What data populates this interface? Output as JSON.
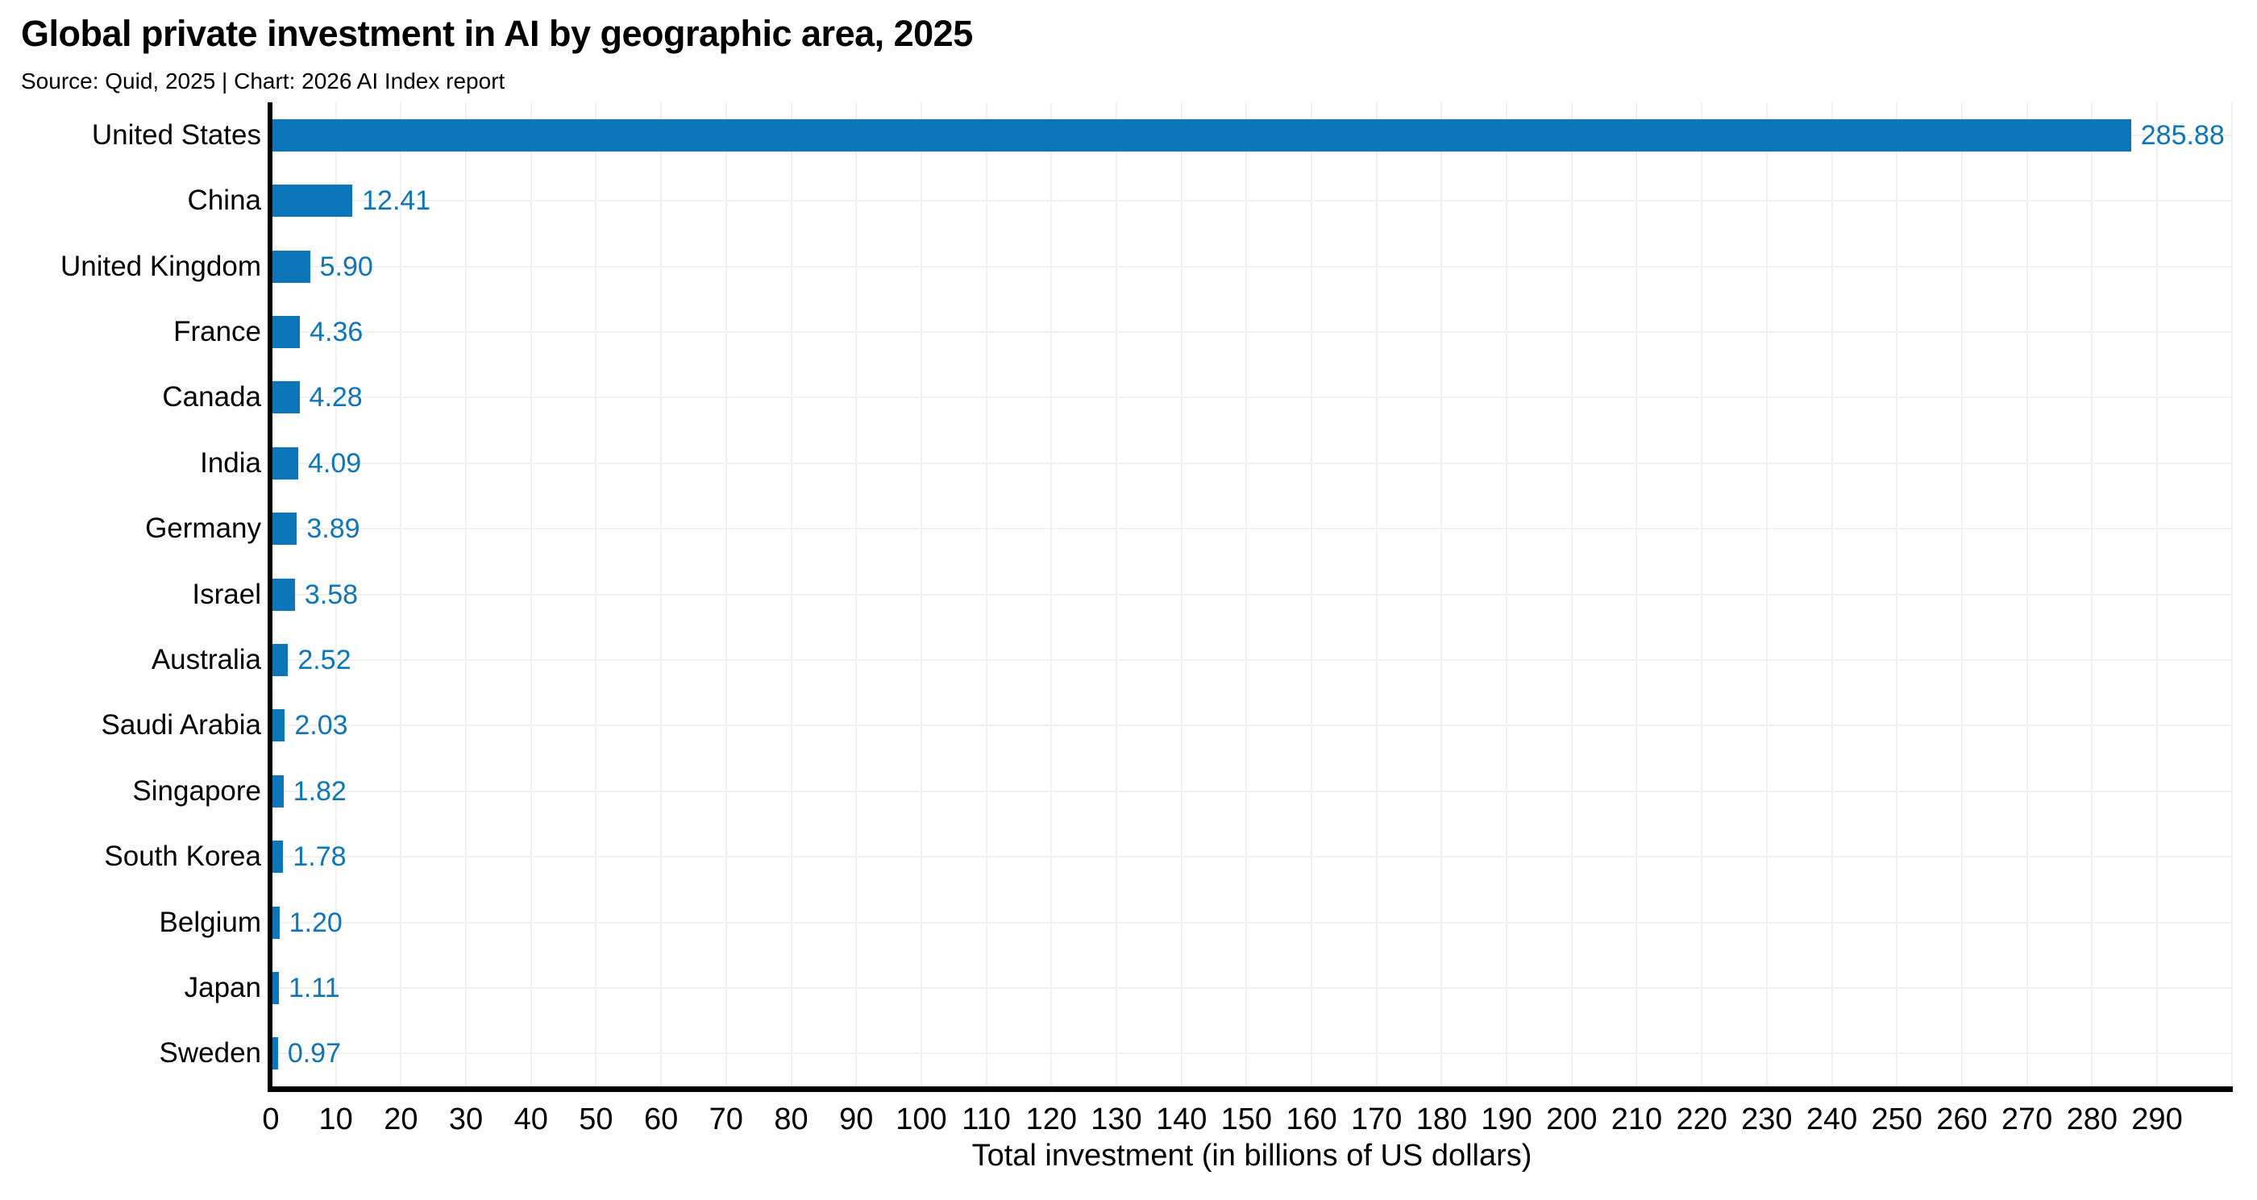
{
  "title": "Global private investment in AI by geographic area, 2025",
  "subtitle": "Source: Quid, 2025 | Chart: 2026 AI Index report",
  "chart_data": {
    "type": "bar",
    "orientation": "horizontal",
    "title": "Global private investment in AI by geographic area, 2025",
    "subtitle": "Source: Quid, 2025 | Chart: 2026 AI Index report",
    "categories": [
      "United States",
      "China",
      "United Kingdom",
      "France",
      "Canada",
      "India",
      "Germany",
      "Israel",
      "Australia",
      "Saudi Arabia",
      "Singapore",
      "South Korea",
      "Belgium",
      "Japan",
      "Sweden"
    ],
    "values": [
      285.88,
      12.41,
      5.9,
      4.36,
      4.28,
      4.09,
      3.89,
      3.58,
      2.52,
      2.03,
      1.82,
      1.78,
      1.2,
      1.11,
      0.97
    ],
    "value_labels": [
      "285.88",
      "12.41",
      "5.90",
      "4.36",
      "4.28",
      "4.09",
      "3.89",
      "3.58",
      "2.52",
      "2.03",
      "1.82",
      "1.78",
      "1.20",
      "1.11",
      "0.97"
    ],
    "xlabel": "Total investment (in billions of US dollars)",
    "ylabel": "",
    "xlim": [
      0,
      300
    ],
    "xticks": [
      0,
      10,
      20,
      30,
      40,
      50,
      60,
      70,
      80,
      90,
      100,
      110,
      120,
      130,
      140,
      150,
      160,
      170,
      180,
      190,
      200,
      210,
      220,
      230,
      240,
      250,
      260,
      270,
      280,
      290
    ],
    "grid": "both",
    "legend": "none",
    "colors": {
      "bar": "#0d76b9",
      "value_label": "#0d76b9",
      "grid": "#f0f0f0",
      "axis": "#000000",
      "text": "#000000",
      "background": "#ffffff"
    }
  }
}
